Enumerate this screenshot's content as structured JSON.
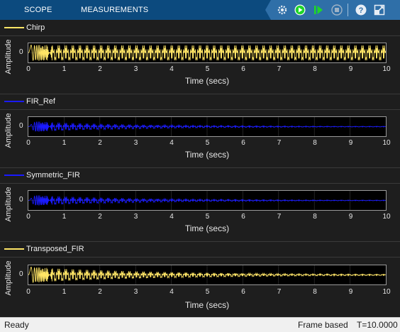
{
  "toolbar": {
    "tabs": [
      {
        "label": "SCOPE"
      },
      {
        "label": "MEASUREMENTS"
      }
    ],
    "tools": [
      {
        "icon": "settings-gear-icon"
      },
      {
        "icon": "run-icon"
      },
      {
        "icon": "step-forward-icon"
      },
      {
        "icon": "stop-icon"
      },
      {
        "icon": "help-icon"
      },
      {
        "icon": "undock-icon"
      }
    ],
    "colors": {
      "bar": "#0c4a7e",
      "tools_bg": "#2f6fa8",
      "run": "#1fd62a"
    }
  },
  "scopes": [
    {
      "legend": "Chirp",
      "color": "#ffe566",
      "ylabel": "Amplitude",
      "ytick": "0",
      "xlabel": "Time (secs)",
      "xticks": [
        "0",
        "1",
        "2",
        "3",
        "4",
        "5",
        "6",
        "7",
        "8",
        "9",
        "10"
      ],
      "decay": "full"
    },
    {
      "legend": "FIR_Ref",
      "color": "#1a1aff",
      "ylabel": "Amplitude",
      "ytick": "0",
      "xlabel": "Time (secs)",
      "xticks": [
        "0",
        "1",
        "2",
        "3",
        "4",
        "5",
        "6",
        "7",
        "8",
        "9",
        "10"
      ],
      "decay": "fast"
    },
    {
      "legend": "Symmetric_FIR",
      "color": "#1a1aff",
      "ylabel": "Amplitude",
      "ytick": "0",
      "xlabel": "Time (secs)",
      "xticks": [
        "0",
        "1",
        "2",
        "3",
        "4",
        "5",
        "6",
        "7",
        "8",
        "9",
        "10"
      ],
      "decay": "fast"
    },
    {
      "legend": "Transposed_FIR",
      "color": "#ffe566",
      "ylabel": "Amplitude",
      "ytick": "0",
      "xlabel": "Time (secs)",
      "xticks": [
        "0",
        "1",
        "2",
        "3",
        "4",
        "5",
        "6",
        "7",
        "8",
        "9",
        "10"
      ],
      "decay": "slow"
    }
  ],
  "time_axis": {
    "min": 0,
    "max": 10
  },
  "status": {
    "left": "Ready",
    "mode": "Frame based",
    "time": "T=10.0000"
  }
}
